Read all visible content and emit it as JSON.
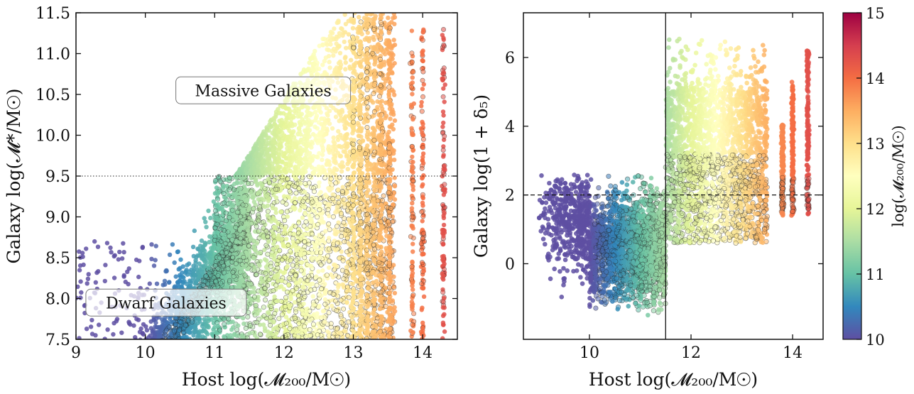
{
  "chart_data": [
    {
      "type": "scatter",
      "panel": "left",
      "xlabel": "Host log(𝓜₂₀₀/M☉)",
      "ylabel": "Galaxy log(𝓜*/M☉)",
      "xlim": [
        9,
        14.5
      ],
      "ylim": [
        7.5,
        11.5
      ],
      "xticks": [
        "9",
        "10",
        "11",
        "12",
        "13",
        "14"
      ],
      "yticks": [
        "7.5",
        "8.0",
        "8.5",
        "9.0",
        "9.5",
        "10.0",
        "10.5",
        "11.0",
        "11.5"
      ],
      "hline": {
        "y": 9.5,
        "style": "dotted"
      },
      "annotations": [
        {
          "text": "Massive Galaxies",
          "x": 11.7,
          "y": 10.55
        },
        {
          "text": "Dwarf Galaxies",
          "x": 10.3,
          "y": 7.95
        }
      ],
      "color_by": "log(𝓜₂₀₀/M☉)",
      "clusters": [
        {
          "name": "dwarf-sequence",
          "x_range": [
            9.0,
            11.5
          ],
          "relation": "y ≈ 7.55 + 1.25*(x-10.4)",
          "spread": 0.35
        },
        {
          "name": "satellites-below-9.5",
          "x_range": [
            11.0,
            13.6
          ],
          "y_range": [
            7.5,
            9.5
          ]
        },
        {
          "name": "massive-above-9.5",
          "x_range": [
            11.2,
            13.6
          ],
          "y_range": [
            9.5,
            11.5
          ]
        },
        {
          "name": "cluster-columns",
          "x_values": [
            13.85,
            14.0,
            14.3
          ],
          "y_range": [
            7.5,
            11.4
          ]
        }
      ]
    },
    {
      "type": "scatter",
      "panel": "right",
      "xlabel": "Host log(𝓜₂₀₀/M☉)",
      "ylabel": "Galaxy log(1 + δ₅)",
      "xlim": [
        8.7,
        14.6
      ],
      "ylim": [
        -2.2,
        7.3
      ],
      "xticks": [
        "10",
        "12",
        "14"
      ],
      "yticks": [
        "0",
        "2",
        "4",
        "6"
      ],
      "hline": {
        "y": 2,
        "style": "dashed"
      },
      "vline": {
        "x": 11.5,
        "style": "solid"
      },
      "color_by": "log(𝓜₂₀₀/M☉)",
      "clusters": [
        {
          "name": "low-mass-hosts",
          "x_range": [
            9.0,
            11.5
          ],
          "y_center": 0.4,
          "y_spread": 1.0
        },
        {
          "name": "groups",
          "x_range": [
            11.5,
            13.5
          ],
          "y_center": 2.8,
          "y_spread": 1.4,
          "y_max": 6.8
        },
        {
          "name": "cluster-columns",
          "x_values": [
            13.8,
            14.0,
            14.3
          ],
          "y_range": [
            1.4,
            6.3
          ]
        }
      ]
    }
  ],
  "colorbar": {
    "label": "log(𝓜₂₀₀/M☉)",
    "range": [
      10,
      15
    ],
    "ticks": [
      "10",
      "11",
      "12",
      "13",
      "14",
      "15"
    ],
    "colormap": "Spectral_r",
    "stops": [
      "#5e4fa2",
      "#3288bd",
      "#66c2a5",
      "#abdda4",
      "#e6f598",
      "#ffffbf",
      "#fee08b",
      "#fdae61",
      "#f46d43",
      "#d53e4f",
      "#9e0142"
    ]
  }
}
